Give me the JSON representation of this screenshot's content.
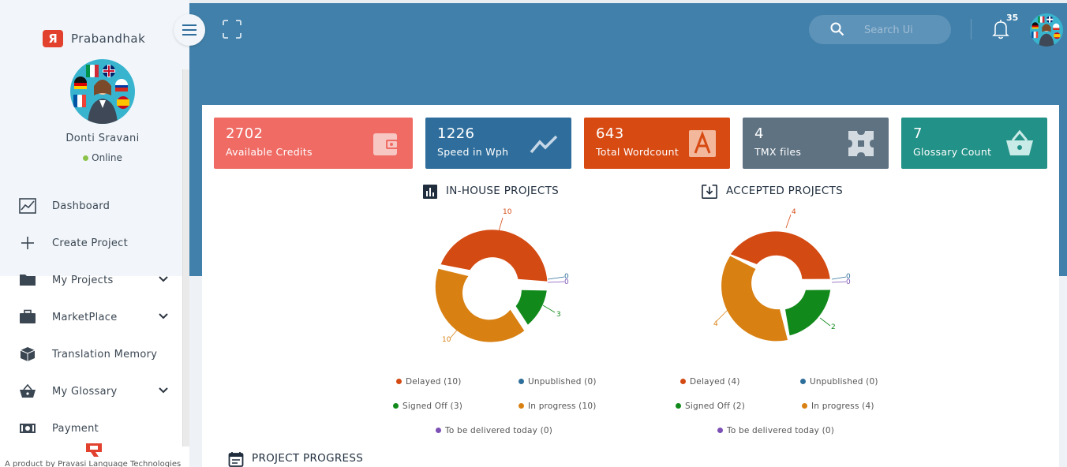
{
  "app": {
    "brand": "Prabandhak",
    "footer_text": "A product by Pravasi Language Technologies"
  },
  "user": {
    "name": "Donti Sravani",
    "status": "Online"
  },
  "sidebar": {
    "items": [
      {
        "label": "Dashboard",
        "icon": "dashboard-icon",
        "expandable": false
      },
      {
        "label": "Create Project",
        "icon": "plus-icon",
        "expandable": false
      },
      {
        "label": "My Projects",
        "icon": "folder-icon",
        "expandable": true
      },
      {
        "label": "MarketPlace",
        "icon": "briefcase-icon",
        "expandable": true
      },
      {
        "label": "Translation Memory",
        "icon": "cube-icon",
        "expandable": false
      },
      {
        "label": "My Glossary",
        "icon": "basket-icon",
        "expandable": true
      },
      {
        "label": "Payment",
        "icon": "money-icon",
        "expandable": false
      }
    ]
  },
  "header": {
    "search_placeholder": "Search Ui",
    "notification_count": "35"
  },
  "stats": [
    {
      "value": "2702",
      "label": "Available Credits",
      "color": "#ef6b64",
      "icon": "wallet-icon"
    },
    {
      "value": "1226",
      "label": "Speed in Wph",
      "color": "#2f6e9c",
      "icon": "trend-icon"
    },
    {
      "value": "643",
      "label": "Total Wordcount",
      "color": "#d74a12",
      "icon": "font-icon"
    },
    {
      "value": "4",
      "label": "TMX files",
      "color": "#5e7282",
      "icon": "puzzle-icon"
    },
    {
      "value": "7",
      "label": "Glossary Count",
      "color": "#229187",
      "icon": "basket-icon"
    }
  ],
  "colors": {
    "delayed": "#d44a13",
    "unpublished": "#2e6e9a",
    "signed_off": "#118a1b",
    "in_progress": "#d88012",
    "to_be_delivered": "#7c50b4"
  },
  "charts": {
    "inhouse": {
      "title": "IN-HOUSE PROJECTS",
      "labels": {
        "delayed": "10",
        "unpublished_a": "0",
        "unpublished_b": "0",
        "signed_off": "3",
        "in_progress": "10"
      },
      "legend": {
        "delayed": "Delayed (10)",
        "unpublished": "Unpublished (0)",
        "signed_off": "Signed Off (3)",
        "in_progress": "In progress (10)",
        "to_be_delivered": "To be delivered today (0)"
      }
    },
    "accepted": {
      "title": "ACCEPTED PROJECTS",
      "labels": {
        "delayed": "4",
        "unpublished_a": "0",
        "unpublished_b": "0",
        "signed_off": "2",
        "in_progress": "4"
      },
      "legend": {
        "delayed": "Delayed (4)",
        "unpublished": "Unpublished (0)",
        "signed_off": "Signed Off (2)",
        "in_progress": "In progress (4)",
        "to_be_delivered": "To be delivered today (0)"
      }
    }
  },
  "chart_data": [
    {
      "type": "pie",
      "title": "IN-HOUSE PROJECTS",
      "categories": [
        "Delayed",
        "Unpublished",
        "Signed Off",
        "In progress",
        "To be delivered today"
      ],
      "values": [
        10,
        0,
        3,
        10,
        0
      ]
    },
    {
      "type": "pie",
      "title": "ACCEPTED PROJECTS",
      "categories": [
        "Delayed",
        "Unpublished",
        "Signed Off",
        "In progress",
        "To be delivered today"
      ],
      "values": [
        4,
        0,
        2,
        4,
        0
      ]
    }
  ],
  "progress_section": {
    "title": "PROJECT PROGRESS"
  }
}
